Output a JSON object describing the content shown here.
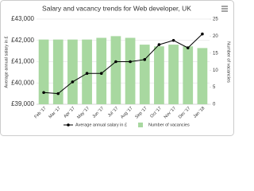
{
  "chart_data": {
    "type": "combo",
    "title": "Salary and vacancy trends for Web developer, UK",
    "categories": [
      "Feb '17",
      "Mar '17",
      "Apr '17",
      "May '17",
      "Jun '17",
      "Jul '17",
      "Aug '17",
      "Sep '17",
      "Oct '17",
      "Nov '17",
      "Dec '17",
      "Jan '18"
    ],
    "series": [
      {
        "name": "Average annual salary in £",
        "type": "line",
        "color": "#000000",
        "values": [
          39550,
          39500,
          40050,
          40450,
          40450,
          41000,
          41000,
          41100,
          41800,
          42000,
          41650,
          42300
        ]
      },
      {
        "name": "Number of vacancies",
        "type": "bar",
        "axis": "y2",
        "color": "#a8d8a0",
        "values": [
          19,
          19,
          19,
          19,
          19.5,
          20,
          19.5,
          17.5,
          17,
          17.5,
          17,
          16.5
        ]
      }
    ],
    "ylabel": "Average annual salary in £",
    "y2label": "Number of vacancies",
    "ylim": [
      39000,
      43000
    ],
    "yticks": [
      {
        "value": 39000,
        "label": "£39,000"
      },
      {
        "value": 40000,
        "label": "£40,000"
      },
      {
        "value": 41000,
        "label": "£41,000"
      },
      {
        "value": 42000,
        "label": "£42,000"
      },
      {
        "value": 43000,
        "label": "£43,000"
      }
    ],
    "y2lim": [
      0,
      25
    ],
    "y2ticks": [
      0,
      5,
      10,
      15,
      20,
      25
    ],
    "grid": true
  }
}
